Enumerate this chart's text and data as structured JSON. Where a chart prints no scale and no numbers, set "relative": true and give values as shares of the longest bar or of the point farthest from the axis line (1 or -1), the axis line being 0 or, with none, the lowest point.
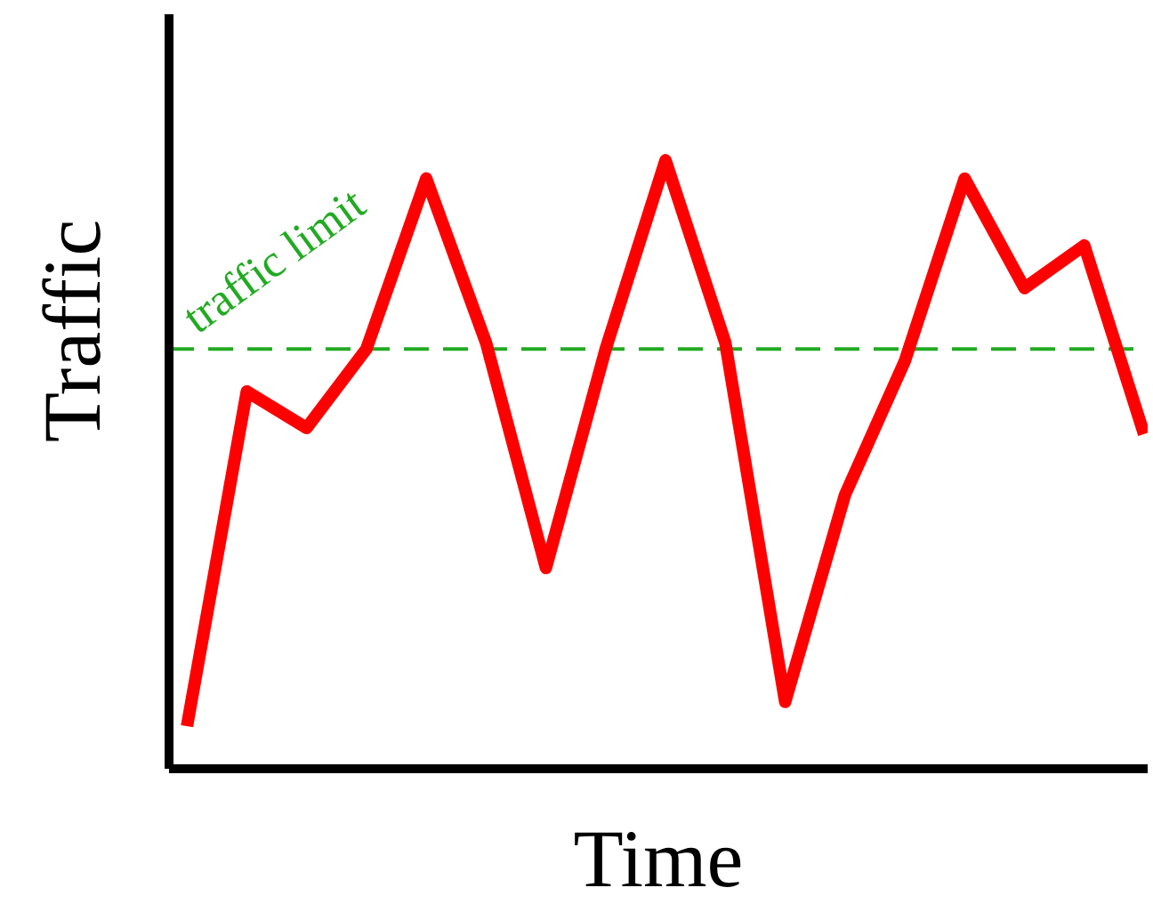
{
  "chart_data": {
    "type": "line",
    "xlabel": "Time",
    "ylabel": "Traffic",
    "relative": true,
    "marker": "none",
    "line_style": "solid",
    "grid": false,
    "legend": false,
    "categories": [
      null,
      null,
      null,
      null,
      null,
      null,
      null,
      null,
      null,
      null,
      null,
      null,
      null,
      null,
      null,
      null,
      null
    ],
    "series": [
      {
        "color": "#ff0000",
        "values": [
          0.07,
          0.62,
          0.56,
          0.69,
          0.97,
          0.7,
          0.33,
          0.69,
          1.0,
          0.7,
          0.11,
          0.45,
          0.67,
          0.97,
          0.79,
          0.86,
          0.55
        ]
      }
    ],
    "ref_lines": [
      {
        "axis": "y",
        "value": 0.69,
        "label": "traffic limit",
        "color": "#22aa22",
        "line_style": "dashed"
      }
    ]
  }
}
